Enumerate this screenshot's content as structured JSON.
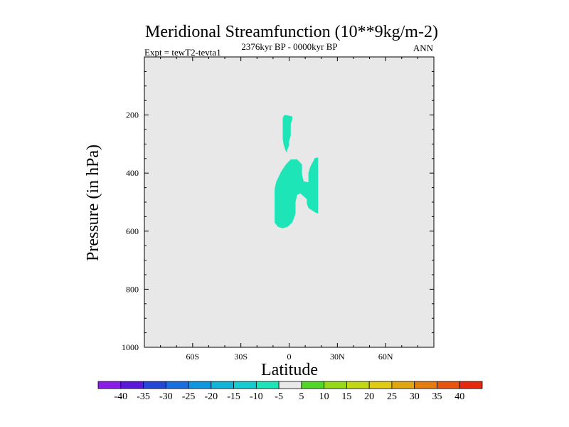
{
  "chart_data": {
    "type": "contour",
    "title": "Meridional Streamfunction (10**9kg/m-2)",
    "subtitle_left": "Expt = tewT2-tevta1",
    "subtitle_center": "2376kyr BP - 0000kyr BP",
    "subtitle_right": "ANN",
    "xlabel": "Latitude",
    "ylabel": "Pressure (in hPa)",
    "xlim": [
      -90,
      90
    ],
    "ylim": [
      1000,
      0
    ],
    "x_ticks": [
      {
        "value": -60,
        "label": "60S"
      },
      {
        "value": -30,
        "label": "30S"
      },
      {
        "value": 0,
        "label": "0"
      },
      {
        "value": 30,
        "label": "30N"
      },
      {
        "value": 60,
        "label": "60N"
      }
    ],
    "y_ticks": [
      {
        "value": 200,
        "label": "200"
      },
      {
        "value": 400,
        "label": "400"
      },
      {
        "value": 600,
        "label": "600"
      },
      {
        "value": 800,
        "label": "800"
      },
      {
        "value": 1000,
        "label": "1000"
      }
    ],
    "background_color": "#e8e8e8",
    "filled_regions": [
      {
        "name": "upper-cell",
        "level": "-10 to -5",
        "color": "#1de5b8",
        "polygon": [
          [
            -3,
            200
          ],
          [
            -1,
            201
          ],
          [
            2,
            205
          ],
          [
            2,
            215
          ],
          [
            1,
            230
          ],
          [
            1,
            270
          ],
          [
            0,
            290
          ],
          [
            0,
            305
          ],
          [
            -1,
            318
          ],
          [
            -1.5,
            330
          ],
          [
            -2.5,
            318
          ],
          [
            -3.5,
            300
          ],
          [
            -4,
            280
          ],
          [
            -4,
            230
          ],
          [
            -4,
            210
          ]
        ]
      },
      {
        "name": "main-cell",
        "level": "-10 to -5",
        "color": "#1de5b8",
        "polygon": [
          [
            -2,
            370
          ],
          [
            1,
            353
          ],
          [
            5,
            353
          ],
          [
            8,
            370
          ],
          [
            8,
            405
          ],
          [
            9,
            428
          ],
          [
            12,
            432
          ],
          [
            12,
            400
          ],
          [
            13,
            380
          ],
          [
            16,
            348
          ],
          [
            18,
            346
          ],
          [
            18,
            540
          ],
          [
            16,
            535
          ],
          [
            12,
            520
          ],
          [
            11,
            505
          ],
          [
            11,
            490
          ],
          [
            7,
            470
          ],
          [
            5,
            475
          ],
          [
            4,
            500
          ],
          [
            4,
            540
          ],
          [
            2,
            570
          ],
          [
            -1,
            585
          ],
          [
            -4,
            590
          ],
          [
            -7,
            585
          ],
          [
            -9,
            570
          ],
          [
            -9,
            455
          ],
          [
            -8,
            430
          ],
          [
            -5,
            395
          ]
        ]
      }
    ],
    "colorbar": {
      "labels": [
        "-40",
        "-35",
        "-30",
        "-25",
        "-20",
        "-15",
        "-10",
        "-5",
        "5",
        "10",
        "15",
        "20",
        "25",
        "30",
        "35",
        "40"
      ],
      "colors": [
        "#8a1ee6",
        "#5a18d8",
        "#2447d6",
        "#1a6fe0",
        "#0f96e0",
        "#12b4d8",
        "#16ccd0",
        "#1de5b8",
        "#e8e8e8",
        "#52d62a",
        "#96d81a",
        "#c2d816",
        "#e0ca14",
        "#e2a612",
        "#e47c10",
        "#e6540e",
        "#e8280c"
      ]
    }
  }
}
